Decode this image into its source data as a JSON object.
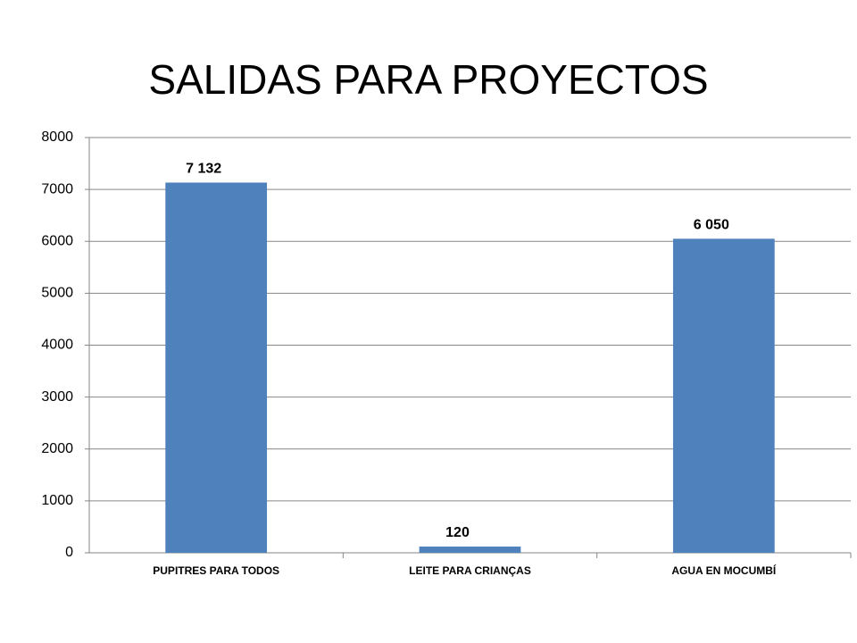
{
  "chart_data": {
    "type": "bar",
    "title": "SALIDAS PARA PROYECTOS",
    "categories": [
      "PUPITRES PARA TODOS",
      "LEITE PARA CRIANÇAS",
      "AGUA EN MOCUMBÍ"
    ],
    "values": [
      7132,
      120,
      6050
    ],
    "value_labels": [
      "7 132",
      "120",
      "6 050"
    ],
    "color": "#4f81bd",
    "ylim": [
      0,
      8000
    ],
    "yticks": [
      0,
      1000,
      2000,
      3000,
      4000,
      5000,
      6000,
      7000,
      8000
    ],
    "grid": true
  }
}
